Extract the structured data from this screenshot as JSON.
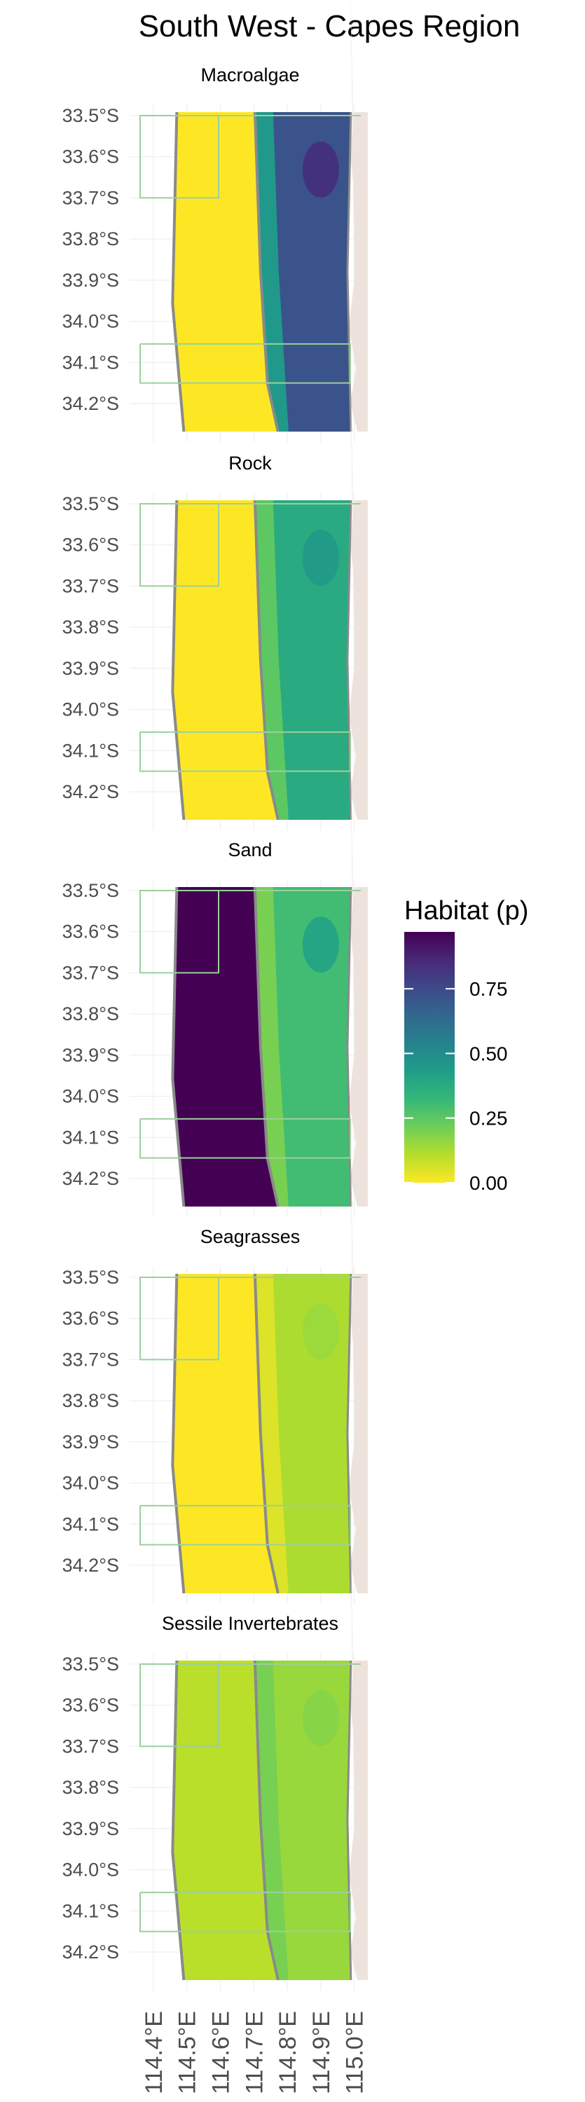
{
  "title": "South West - Capes Region",
  "panels": [
    {
      "label": "Macroalgae",
      "inshore": 0.0,
      "offshore": 0.72,
      "bright_mid": 0.45,
      "dark_patch": 0.85
    },
    {
      "label": "Rock",
      "inshore": 0.0,
      "offshore": 0.38,
      "bright_mid": 0.25,
      "dark_patch": 0.45
    },
    {
      "label": "Sand",
      "inshore": 0.97,
      "offshore": 0.3,
      "bright_mid": 0.2,
      "dark_patch": 0.42
    },
    {
      "label": "Seagrasses",
      "inshore": 0.0,
      "offshore": 0.12,
      "bright_mid": 0.05,
      "dark_patch": 0.15
    },
    {
      "label": "Sessile Invertebrates",
      "inshore": 0.1,
      "offshore": 0.15,
      "bright_mid": 0.2,
      "dark_patch": 0.18
    }
  ],
  "y_ticks": [
    "33.5°S",
    "33.6°S",
    "33.7°S",
    "33.8°S",
    "33.9°S",
    "34.0°S",
    "34.1°S",
    "34.2°S"
  ],
  "x_ticks": [
    "114.4°E",
    "114.5°E",
    "114.6°E",
    "114.7°E",
    "114.8°E",
    "114.9°E",
    "115.0°E"
  ],
  "legend": {
    "title": "Habitat (p)",
    "ticks": [
      "0.75",
      "0.50",
      "0.25",
      "0.00"
    ],
    "tick_values": [
      0.75,
      0.5,
      0.25,
      0.0
    ],
    "max": 0.97,
    "colors": [
      "#fde725",
      "#b5de2b",
      "#6ece58",
      "#35b779",
      "#1f9e89",
      "#26828e",
      "#31688e",
      "#3e4989",
      "#482878",
      "#440154"
    ]
  },
  "colors": {
    "land": "#ede3dc",
    "contour": "#8a8a8a",
    "boundary": "#9ccf9c",
    "grid": "#ebebeb"
  }
}
